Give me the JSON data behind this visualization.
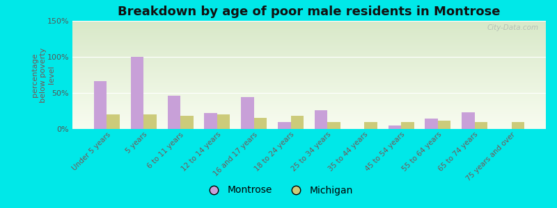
{
  "title": "Breakdown by age of poor male residents in Montrose",
  "ylabel": "percentage\nbelow poverty\nlevel",
  "categories": [
    "Under 5 years",
    "5 years",
    "6 to 11 years",
    "12 to 14 years",
    "16 and 17 years",
    "18 to 24 years",
    "25 to 34 years",
    "35 to 44 years",
    "45 to 54 years",
    "55 to 64 years",
    "65 to 74 years",
    "75 years and over"
  ],
  "montrose": [
    66,
    100,
    46,
    22,
    44,
    10,
    26,
    0,
    5,
    14,
    23,
    0
  ],
  "michigan": [
    20,
    20,
    18,
    20,
    15,
    18,
    10,
    10,
    10,
    12,
    10,
    10
  ],
  "montrose_color": "#c8a0d8",
  "michigan_color": "#cccb7a",
  "ylim": [
    0,
    150
  ],
  "yticks": [
    0,
    50,
    100,
    150
  ],
  "ytick_labels": [
    "0%",
    "50%",
    "100%",
    "150%"
  ],
  "bg_color_top": "#d8e8c8",
  "bg_color_bottom": "#f0f8e0",
  "outer_bg": "#00e8e8",
  "watermark": "City-Data.com",
  "bar_width": 0.35,
  "title_fontsize": 13,
  "legend_fontsize": 10
}
